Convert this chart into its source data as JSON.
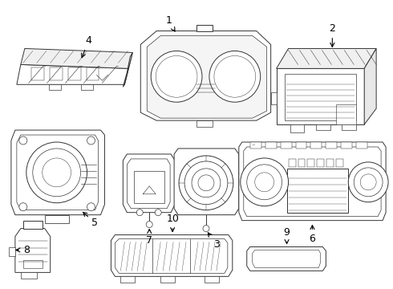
{
  "background_color": "#ffffff",
  "line_color": "#333333",
  "line_width": 0.7,
  "fig_w": 4.9,
  "fig_h": 3.6,
  "dpi": 100
}
